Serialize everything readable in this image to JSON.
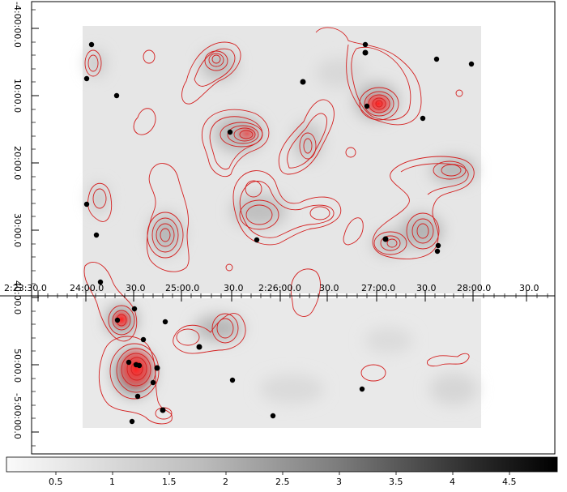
{
  "colors": {
    "background": "#ffffff",
    "contour": "#d42020",
    "contour_core": "#ff1a1a",
    "source_dot": "#000000",
    "axis": "#000000"
  },
  "axes": {
    "ra_ticks": [
      "2:23:30.0",
      "24:00.0",
      "30.0",
      "25:00.0",
      "30.0",
      "2:26:00.0",
      "30.0",
      "27:00.0",
      "30.0",
      "28:00.0",
      "30.0"
    ],
    "dec_ticks": [
      "-4:00:00.0",
      "10:00.0",
      "20:00.0",
      "30:00.0",
      "40:00.0",
      "50:00.0",
      "-5:00:00.0"
    ]
  },
  "colorbar": {
    "min": 0,
    "max": 4.8,
    "tick_labels": [
      "0.5",
      "1",
      "1.5",
      "2",
      "2.5",
      "3",
      "3.5",
      "4",
      "4.5"
    ]
  },
  "icons": {
    "contour_map": "contour-map-icon",
    "source_marker": "source-dot-icon"
  }
}
